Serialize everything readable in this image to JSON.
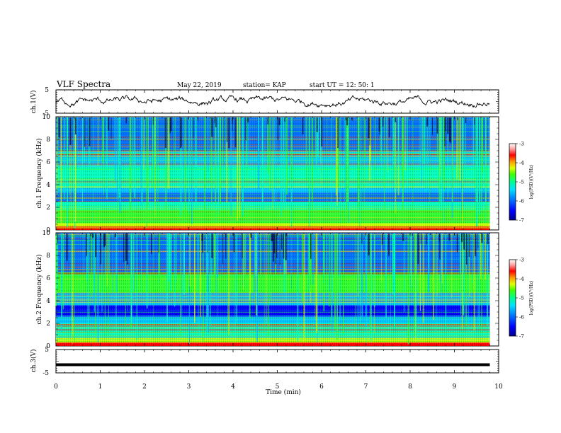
{
  "header": {
    "title": "VLF Spectra",
    "date": "May 22, 2019",
    "station": "station= KAP",
    "start_ut": "start  UT =   12: 50: 1"
  },
  "chart_data": [
    {
      "type": "line",
      "panel": "ch1-waveform",
      "ylabel": "ch.1(V)",
      "ylim": [
        -5,
        5
      ],
      "y_ticks": [
        "5",
        "-5"
      ],
      "x": {
        "label": "Time (min)",
        "range": [
          0,
          10
        ]
      },
      "series": [
        {
          "values_summary": {
            "min": -2.4,
            "max": 2.6,
            "mean": 0.0
          }
        }
      ]
    },
    {
      "type": "heatmap",
      "panel": "ch1-spectrogram",
      "ylabel": "ch.1 Frequency (kHz)",
      "ylim": [
        0,
        10
      ],
      "y_ticks": [
        "0",
        "2",
        "4",
        "6",
        "8",
        "10"
      ],
      "x_range_min": [
        0,
        9.8
      ],
      "colorbar": {
        "label": "log(PSD)(V²/Hz)",
        "range": [
          -7,
          -3
        ],
        "ticks": [
          "-3",
          "-4",
          "-5",
          "-6",
          "-7"
        ]
      },
      "bands_khz": [
        {
          "from": 0.0,
          "to": 0.3,
          "level": -3.3
        },
        {
          "from": 0.3,
          "to": 0.6,
          "level": -4.6
        },
        {
          "from": 0.6,
          "to": 1.8,
          "level": -4.9
        },
        {
          "from": 1.8,
          "to": 2.5,
          "level": -5.6
        },
        {
          "from": 2.5,
          "to": 3.3,
          "level": -6.3
        },
        {
          "from": 3.3,
          "to": 3.7,
          "level": -5.8
        },
        {
          "from": 3.7,
          "to": 5.6,
          "level": -5.6
        },
        {
          "from": 5.6,
          "to": 7.0,
          "level": -6.0
        },
        {
          "from": 7.0,
          "to": 10.0,
          "level": -6.3
        }
      ]
    },
    {
      "type": "heatmap",
      "panel": "ch2-spectrogram",
      "ylabel": "ch.2 Frequency (kHz)",
      "ylim": [
        0,
        10
      ],
      "y_ticks": [
        "0",
        "2",
        "4",
        "6",
        "8",
        "10"
      ],
      "x_range_min": [
        0,
        9.8
      ],
      "colorbar": {
        "label": "log(PSD)(V²/Hz)",
        "range": [
          -7,
          -3
        ],
        "ticks": [
          "-3",
          "-4",
          "-5",
          "-6",
          "-7"
        ]
      },
      "bands_khz": [
        {
          "from": 0.0,
          "to": 0.3,
          "level": -3.3
        },
        {
          "from": 0.3,
          "to": 0.7,
          "level": -4.8
        },
        {
          "from": 0.7,
          "to": 2.0,
          "level": -5.6
        },
        {
          "from": 2.0,
          "to": 2.6,
          "level": -6.0
        },
        {
          "from": 2.6,
          "to": 3.6,
          "level": -6.7
        },
        {
          "from": 3.6,
          "to": 4.7,
          "level": -5.7
        },
        {
          "from": 4.7,
          "to": 6.5,
          "level": -5.0
        },
        {
          "from": 6.5,
          "to": 10.0,
          "level": -6.2
        }
      ]
    },
    {
      "type": "line",
      "panel": "ch3-waveform",
      "ylabel": "ch.3(V)",
      "ylim": [
        -5,
        5
      ],
      "y_ticks": [
        "5",
        "-5"
      ],
      "series": [
        {
          "values_summary": {
            "constant": -1.5
          }
        }
      ]
    }
  ],
  "x_axis": {
    "label": "Time (min)",
    "range": [
      0,
      10
    ],
    "ticks": [
      "0",
      "1",
      "2",
      "3",
      "4",
      "5",
      "6",
      "7",
      "8",
      "9",
      "10"
    ]
  },
  "colors": {
    "scale": [
      "#0000a0",
      "#0000ff",
      "#0070ff",
      "#00c8ff",
      "#00ffc0",
      "#30ff30",
      "#c8ff00",
      "#ffd000",
      "#ff5000",
      "#ff0000",
      "#ffffff"
    ]
  }
}
